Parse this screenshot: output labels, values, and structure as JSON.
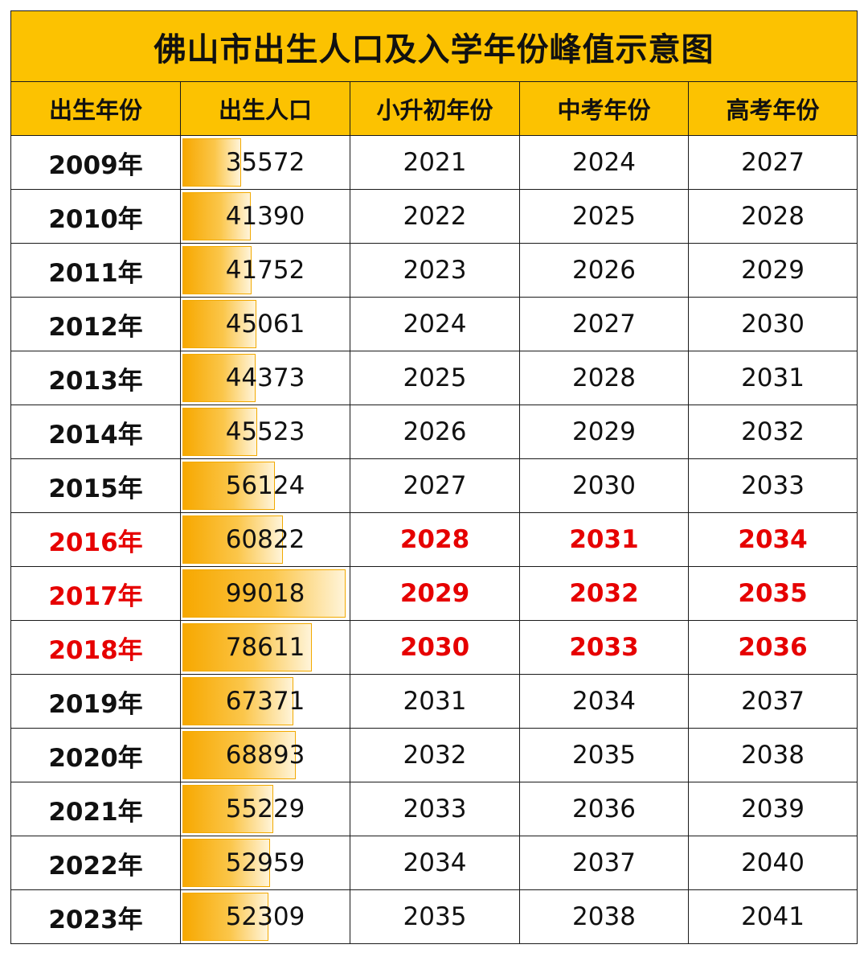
{
  "title": "佛山市出生人口及入学年份峰值示意图",
  "headers": [
    "出生年份",
    "出生人口",
    "小升初年份",
    "中考年份",
    "高考年份"
  ],
  "colors": {
    "header_bg": "#fcc201",
    "peak_text": "#e60000",
    "bar_fill": "#f7a800"
  },
  "bar_max": 99018,
  "rows": [
    {
      "birth_year": "2009年",
      "population": 35572,
      "population_text": "35572",
      "junior_high": "2021",
      "zhongkao": "2024",
      "gaokao": "2027",
      "peak": false
    },
    {
      "birth_year": "2010年",
      "population": 41390,
      "population_text": "41390",
      "junior_high": "2022",
      "zhongkao": "2025",
      "gaokao": "2028",
      "peak": false
    },
    {
      "birth_year": "2011年",
      "population": 41752,
      "population_text": "41752",
      "junior_high": "2023",
      "zhongkao": "2026",
      "gaokao": "2029",
      "peak": false
    },
    {
      "birth_year": "2012年",
      "population": 45061,
      "population_text": "45061",
      "junior_high": "2024",
      "zhongkao": "2027",
      "gaokao": "2030",
      "peak": false
    },
    {
      "birth_year": "2013年",
      "population": 44373,
      "population_text": "44373",
      "junior_high": "2025",
      "zhongkao": "2028",
      "gaokao": "2031",
      "peak": false
    },
    {
      "birth_year": "2014年",
      "population": 45523,
      "population_text": "45523",
      "junior_high": "2026",
      "zhongkao": "2029",
      "gaokao": "2032",
      "peak": false
    },
    {
      "birth_year": "2015年",
      "population": 56124,
      "population_text": "56124",
      "junior_high": "2027",
      "zhongkao": "2030",
      "gaokao": "2033",
      "peak": false
    },
    {
      "birth_year": "2016年",
      "population": 60822,
      "population_text": "60822",
      "junior_high": "2028",
      "zhongkao": "2031",
      "gaokao": "2034",
      "peak": true
    },
    {
      "birth_year": "2017年",
      "population": 99018,
      "population_text": "99018",
      "junior_high": "2029",
      "zhongkao": "2032",
      "gaokao": "2035",
      "peak": true
    },
    {
      "birth_year": "2018年",
      "population": 78611,
      "population_text": "78611",
      "junior_high": "2030",
      "zhongkao": "2033",
      "gaokao": "2036",
      "peak": true
    },
    {
      "birth_year": "2019年",
      "population": 67371,
      "population_text": "67371",
      "junior_high": "2031",
      "zhongkao": "2034",
      "gaokao": "2037",
      "peak": false
    },
    {
      "birth_year": "2020年",
      "population": 68893,
      "population_text": "68893",
      "junior_high": "2032",
      "zhongkao": "2035",
      "gaokao": "2038",
      "peak": false
    },
    {
      "birth_year": "2021年",
      "population": 55229,
      "population_text": "55229",
      "junior_high": "2033",
      "zhongkao": "2036",
      "gaokao": "2039",
      "peak": false
    },
    {
      "birth_year": "2022年",
      "population": 52959,
      "population_text": "52959",
      "junior_high": "2034",
      "zhongkao": "2037",
      "gaokao": "2040",
      "peak": false
    },
    {
      "birth_year": "2023年",
      "population": 52309,
      "population_text": "52309",
      "junior_high": "2035",
      "zhongkao": "2038",
      "gaokao": "2041",
      "peak": false
    }
  ]
}
